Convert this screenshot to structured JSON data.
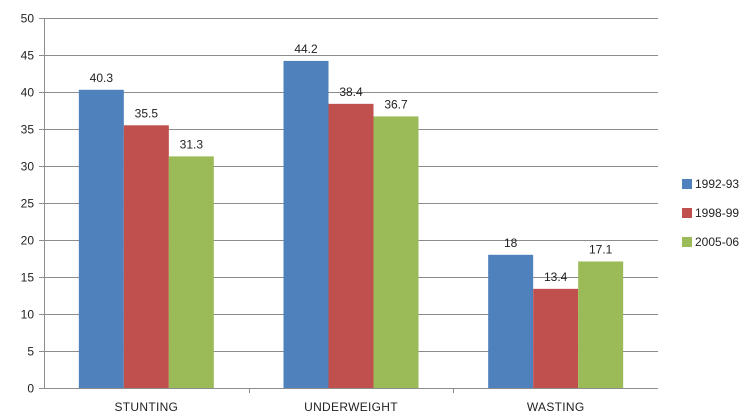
{
  "chart_data": {
    "type": "bar",
    "title": "",
    "xlabel": "",
    "ylabel": "",
    "categories": [
      "STUNTING",
      "UNDERWEIGHT",
      "WASTING"
    ],
    "series": [
      {
        "name": "1992-93",
        "color": "#4f81bd",
        "values": [
          40.3,
          44.2,
          18
        ]
      },
      {
        "name": "1998-99",
        "color": "#c0504d",
        "values": [
          35.5,
          38.4,
          13.4
        ]
      },
      {
        "name": "2005-06",
        "color": "#9bbb59",
        "values": [
          31.3,
          36.7,
          17.1
        ]
      }
    ],
    "ylim": [
      0,
      50
    ],
    "yticks": [
      0,
      5,
      10,
      15,
      20,
      25,
      30,
      35,
      40,
      45,
      50
    ],
    "grid": true,
    "legend": "right"
  }
}
